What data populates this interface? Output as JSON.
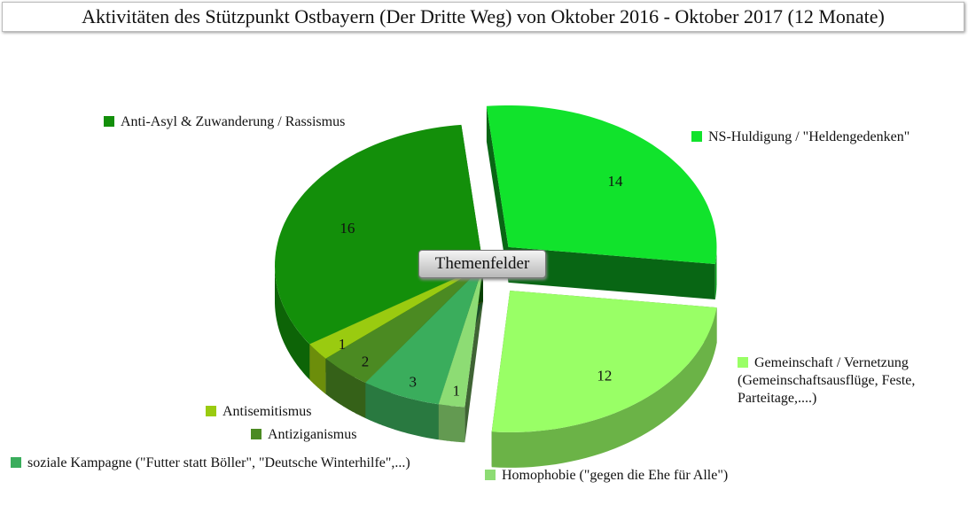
{
  "chart_data": {
    "type": "pie",
    "title": "Aktivitäten des Stützpunkt Ostbayern (Der Dritte Weg) von Oktober 2016 - Oktober 2017 (12 Monate)",
    "center_label": "Themenfelder",
    "categories": [
      "NS-Huldigung / \"Heldengedenken\"",
      "Gemeinschaft / Vernetzung (Gemeinschaftsausflüge, Feste, Parteitage,....)",
      "Homophobie (\"gegen die Ehe für Alle\")",
      "soziale Kampagne (\"Futter statt Böller\", \"Deutsche Winterhilfe\",...)",
      "Antiziganismus",
      "Antisemitismus",
      "Anti-Asyl & Zuwanderung / Rassismus"
    ],
    "values": [
      14,
      12,
      1,
      3,
      2,
      1,
      16
    ],
    "colors": [
      "#11e32c",
      "#99ff66",
      "#8ddc74",
      "#3aad5c",
      "#4b8a22",
      "#9acb10",
      "#138f0a"
    ]
  }
}
